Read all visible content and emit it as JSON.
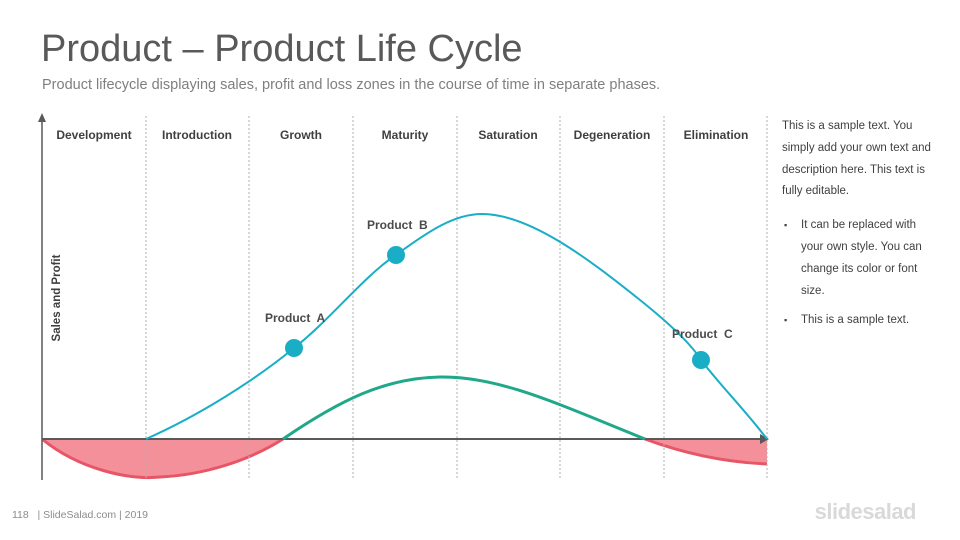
{
  "header": {
    "title": "Product – Product Life Cycle",
    "subtitle": "Product lifecycle displaying sales, profit and loss zones in the course of time in separate phases."
  },
  "diagram": {
    "y_axis_label": "Sales and Profit",
    "phases": [
      "Development",
      "Introduction",
      "Growth",
      "Maturity",
      "Saturation",
      "Degeneration",
      "Elimination"
    ],
    "products": [
      {
        "label": "Product  A"
      },
      {
        "label": "Product  B"
      },
      {
        "label": "Product  C"
      }
    ],
    "colors": {
      "sales_curve": "#1aaec6",
      "profit_curve": "#1fa88a",
      "loss_fill": "#f4909a",
      "loss_stroke": "#e85566",
      "marker": "#1aaec6",
      "axis": "#595959"
    }
  },
  "sidebar": {
    "paragraph": "This is a sample text. You simply add your own text and description here. This text is fully editable.",
    "bullets": [
      "It can be replaced with your own style. You can change its color or font size.",
      "This is a sample text."
    ]
  },
  "footer": {
    "text": "118   | SlideSalad.com | 2019",
    "logo": "slidesalad"
  }
}
